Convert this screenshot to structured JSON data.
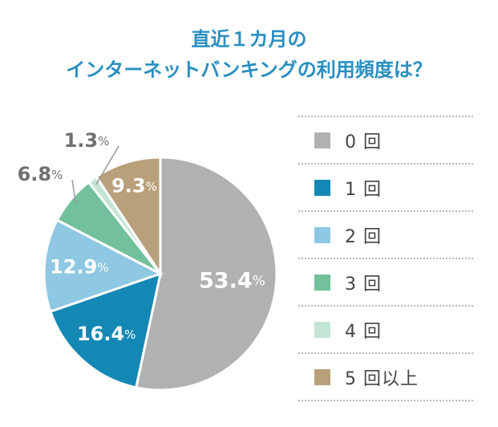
{
  "title": {
    "line1": "直近１カ月の",
    "line2": "インターネットバンキングの利用頻度は？"
  },
  "chart_data": {
    "type": "pie",
    "categories": [
      "0 回",
      "1 回",
      "2 回",
      "3 回",
      "4 回",
      "5 回以上"
    ],
    "values": [
      53.4,
      16.4,
      12.9,
      6.8,
      1.3,
      9.3
    ],
    "labels": [
      "53.4",
      "16.4",
      "12.9",
      "6.8",
      "1.3",
      "9.3"
    ],
    "unit": "%",
    "colors": [
      "#b1b1b1",
      "#1488b4",
      "#8ec8e3",
      "#72c19c",
      "#c5e5d4",
      "#b8a07a"
    ],
    "start": "12 o'clock, clockwise",
    "legend_position": "right"
  }
}
